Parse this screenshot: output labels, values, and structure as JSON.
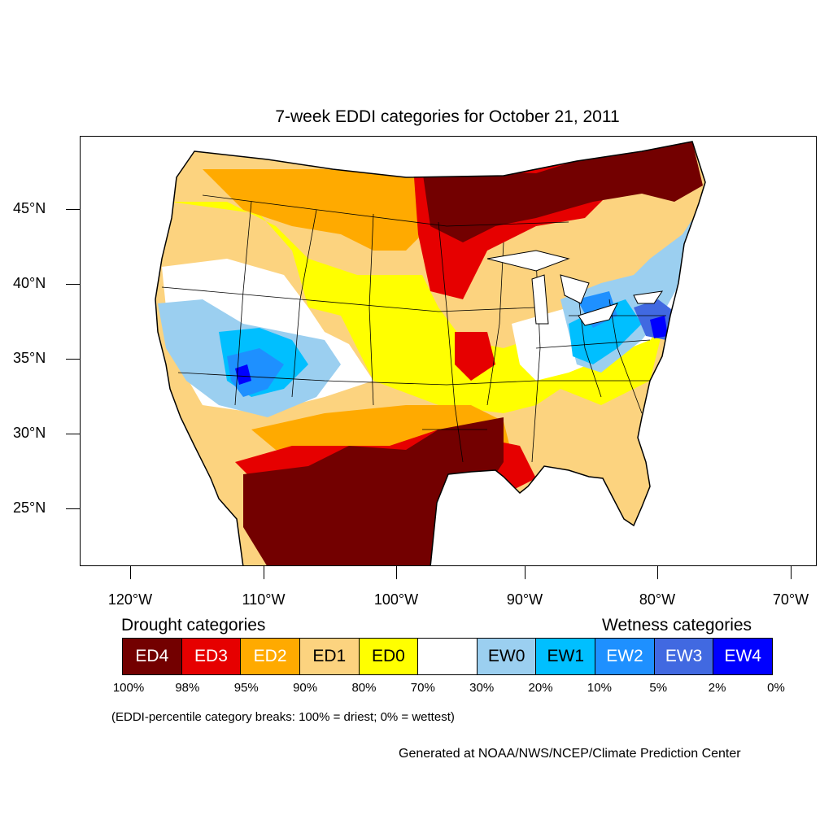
{
  "title": "7-week EDDI categories for October 21, 2011",
  "lat_labels": [
    "45°N",
    "40°N",
    "35°N",
    "30°N",
    "25°N"
  ],
  "lon_labels": [
    "120°W",
    "110°W",
    "100°W",
    "90°W",
    "80°W",
    "70°W"
  ],
  "legend": {
    "drought_heading": "Drought categories",
    "wetness_heading": "Wetness categories",
    "categories": [
      {
        "label": "ED4",
        "color": "#730000",
        "text_color": "#ffffff"
      },
      {
        "label": "ED3",
        "color": "#e60000",
        "text_color": "#ffffff"
      },
      {
        "label": "ED2",
        "color": "#ffaa00",
        "text_color": "#ffffff"
      },
      {
        "label": "ED1",
        "color": "#fcd37f",
        "text_color": "#000000"
      },
      {
        "label": "ED0",
        "color": "#ffff00",
        "text_color": "#000000"
      },
      {
        "label": "",
        "color": "#ffffff",
        "text_color": "#000000"
      },
      {
        "label": "EW0",
        "color": "#9bcff0",
        "text_color": "#000000"
      },
      {
        "label": "EW1",
        "color": "#00bfff",
        "text_color": "#000000"
      },
      {
        "label": "EW2",
        "color": "#1e90ff",
        "text_color": "#ffffff"
      },
      {
        "label": "EW3",
        "color": "#4169e1",
        "text_color": "#ffffff"
      },
      {
        "label": "EW4",
        "color": "#0000ff",
        "text_color": "#ffffff"
      }
    ],
    "breaks": [
      "100%",
      "98%",
      "95%",
      "90%",
      "80%",
      "70%",
      "30%",
      "20%",
      "10%",
      "5%",
      "2%",
      "0%"
    ]
  },
  "note": "(EDDI-percentile category breaks: 100% = driest; 0% = wettest)",
  "credit": "Generated at NOAA/NWS/NCEP/Climate Prediction Center"
}
